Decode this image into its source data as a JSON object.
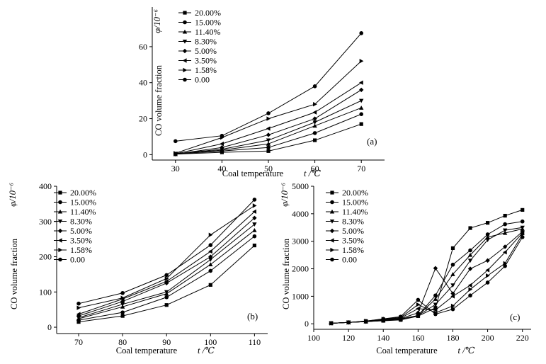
{
  "chart_data": [
    {
      "type": "line",
      "panel_label": "(a)",
      "xlabel": "Coal temperature",
      "xlabel_symbol": "t /℃",
      "ylabel": "CO volume fraction",
      "ylabel_symbol": "φ/10⁻⁶",
      "xlim": [
        25,
        75
      ],
      "ylim": [
        -3,
        82
      ],
      "xticks": [
        30,
        40,
        50,
        60,
        70
      ],
      "yticks": [
        0,
        20,
        40,
        60
      ],
      "legend": "top-left",
      "x": [
        30,
        40,
        50,
        60,
        70
      ],
      "series": [
        {
          "name": "20.00%",
          "marker": "square",
          "values": [
            0.3,
            1.3,
            2,
            8,
            17
          ]
        },
        {
          "name": "15.00%",
          "marker": "circle",
          "values": [
            0.4,
            2,
            4,
            12,
            22.5
          ]
        },
        {
          "name": "11.40%",
          "marker": "triangle-up",
          "values": [
            0.2,
            2.5,
            6,
            16,
            26
          ]
        },
        {
          "name": "8.30%",
          "marker": "triangle-down",
          "values": [
            0.5,
            3,
            8,
            18,
            30
          ]
        },
        {
          "name": "5.00%",
          "marker": "diamond",
          "values": [
            0.3,
            4,
            11,
            20,
            36
          ]
        },
        {
          "name": "3.50%",
          "marker": "triangle-left",
          "values": [
            0.5,
            6,
            14.5,
            23.5,
            40
          ]
        },
        {
          "name": "1.58%",
          "marker": "triangle-right",
          "values": [
            0.8,
            9.5,
            20,
            28,
            52
          ]
        },
        {
          "name": "0.00",
          "marker": "hexagon",
          "values": [
            7.5,
            10.5,
            23,
            38,
            67.5
          ]
        }
      ]
    },
    {
      "type": "line",
      "panel_label": "(b)",
      "xlabel": "Coal temperature",
      "xlabel_symbol": "t /℃",
      "ylabel": "CO volume fraction",
      "ylabel_symbol": "φ/10⁻⁶",
      "xlim": [
        65,
        113
      ],
      "ylim": [
        -18,
        400
      ],
      "xticks": [
        70,
        80,
        90,
        100,
        110
      ],
      "yticks": [
        0,
        100,
        200,
        300,
        400
      ],
      "legend": "top-left",
      "x": [
        70,
        80,
        90,
        100,
        110
      ],
      "series": [
        {
          "name": "20.00%",
          "marker": "square",
          "values": [
            15,
            32,
            63,
            120,
            232
          ]
        },
        {
          "name": "15.00%",
          "marker": "circle",
          "values": [
            20,
            42,
            85,
            160,
            258
          ]
        },
        {
          "name": "11.40%",
          "marker": "triangle-up",
          "values": [
            24,
            58,
            95,
            178,
            275
          ]
        },
        {
          "name": "8.30%",
          "marker": "triangle-down",
          "values": [
            27,
            65,
            100,
            192,
            292
          ]
        },
        {
          "name": "5.00%",
          "marker": "diamond",
          "values": [
            32,
            73,
            125,
            200,
            310
          ]
        },
        {
          "name": "3.50%",
          "marker": "triangle-left",
          "values": [
            37,
            80,
            130,
            215,
            328
          ]
        },
        {
          "name": "1.58%",
          "marker": "triangle-right",
          "values": [
            55,
            83,
            138,
            262,
            345
          ]
        },
        {
          "name": "0.00",
          "marker": "hexagon",
          "values": [
            67,
            97,
            148,
            233,
            362
          ]
        }
      ]
    },
    {
      "type": "line",
      "panel_label": "(c)",
      "xlabel": "Coal temperature",
      "xlabel_symbol": "t /℃",
      "ylabel": "CO volume fraction",
      "ylabel_symbol": "φ/10⁻⁶",
      "xlim": [
        100,
        225
      ],
      "ylim": [
        -200,
        5000
      ],
      "xticks": [
        100,
        120,
        140,
        160,
        180,
        200,
        220
      ],
      "yticks": [
        0,
        1000,
        2000,
        3000,
        4000,
        5000
      ],
      "legend": "top-left",
      "x": [
        110,
        120,
        130,
        140,
        150,
        160,
        170,
        180,
        190,
        200,
        210,
        220
      ],
      "series": [
        {
          "name": "20.00%",
          "marker": "square",
          "values": [
            20,
            50,
            80,
            110,
            140,
            280,
            580,
            2750,
            3480,
            3670,
            3930,
            4140
          ]
        },
        {
          "name": "15.00%",
          "marker": "circle",
          "values": [
            20,
            50,
            80,
            120,
            170,
            300,
            1030,
            2150,
            2670,
            3250,
            3620,
            3720
          ]
        },
        {
          "name": "11.40%",
          "marker": "triangle-up",
          "values": [
            20,
            50,
            80,
            120,
            170,
            300,
            900,
            1800,
            2500,
            3150,
            3300,
            3450
          ]
        },
        {
          "name": "8.30%",
          "marker": "triangle-down",
          "values": [
            20,
            50,
            80,
            120,
            180,
            300,
            700,
            1400,
            2300,
            3050,
            3400,
            3500
          ]
        },
        {
          "name": "5.00%",
          "marker": "diamond",
          "values": [
            20,
            50,
            80,
            130,
            190,
            400,
            2020,
            1100,
            2000,
            2300,
            2800,
            3350
          ]
        },
        {
          "name": "3.50%",
          "marker": "triangle-left",
          "values": [
            20,
            50,
            90,
            150,
            210,
            550,
            500,
            1000,
            1400,
            1950,
            2600,
            3300
          ]
        },
        {
          "name": "1.58%",
          "marker": "triangle-right",
          "values": [
            20,
            50,
            100,
            170,
            230,
            700,
            400,
            650,
            1250,
            1750,
            2200,
            3250
          ]
        },
        {
          "name": "0.00",
          "marker": "hexagon",
          "values": [
            20,
            50,
            100,
            180,
            260,
            870,
            350,
            530,
            1030,
            1500,
            2100,
            3150
          ]
        }
      ]
    }
  ]
}
